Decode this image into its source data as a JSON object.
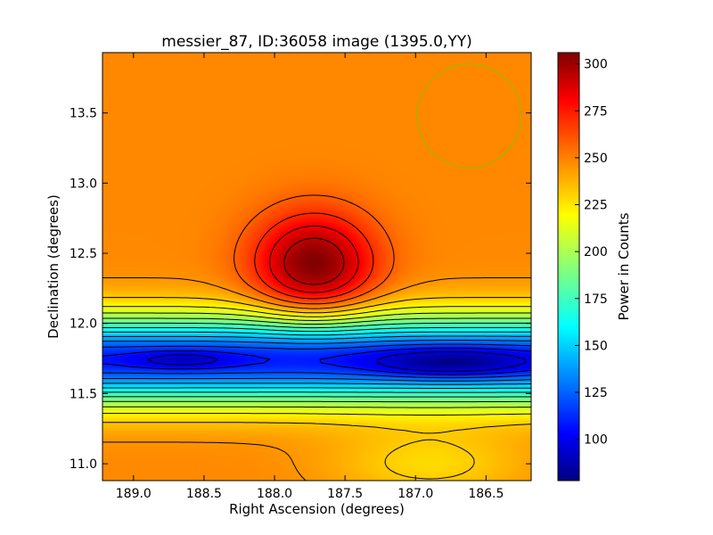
{
  "chart_data": {
    "type": "heatmap",
    "title": "messier_87, ID:36058 image (1395.0,YY)",
    "xlabel": "Right Ascension (degrees)",
    "ylabel": "Declination (degrees)",
    "colorbar_label": "Power in Counts",
    "colormap": "jet",
    "xlim": [
      189.22,
      186.18
    ],
    "ylim": [
      10.88,
      13.93
    ],
    "x_ticks": [
      189.0,
      188.5,
      188.0,
      187.5,
      187.0,
      186.5
    ],
    "x_tick_labels": [
      "189.0",
      "188.5",
      "188.0",
      "187.5",
      "187.0",
      "186.5"
    ],
    "y_ticks": [
      11.0,
      11.5,
      12.0,
      12.5,
      13.0,
      13.5
    ],
    "y_tick_labels": [
      "11.0",
      "11.5",
      "12.0",
      "12.5",
      "13.0",
      "13.5"
    ],
    "color_range": [
      78,
      306
    ],
    "colorbar_ticks": [
      100,
      125,
      150,
      175,
      200,
      225,
      250,
      275,
      300
    ],
    "colorbar_tick_labels": [
      "100",
      "125",
      "150",
      "175",
      "200",
      "225",
      "250",
      "275",
      "300"
    ],
    "features": [
      {
        "kind": "peak",
        "ra": 187.72,
        "dec": 12.42,
        "value": 306
      },
      {
        "kind": "trough",
        "ra": 186.75,
        "dec": 11.72,
        "value": 80
      },
      {
        "kind": "trough",
        "ra": 188.65,
        "dec": 11.74,
        "value": 90
      }
    ],
    "circle_marker": {
      "ra": 186.62,
      "dec": 13.48,
      "radius_deg": 0.37,
      "color": "#a0b400"
    },
    "contour_color": "#000000"
  }
}
